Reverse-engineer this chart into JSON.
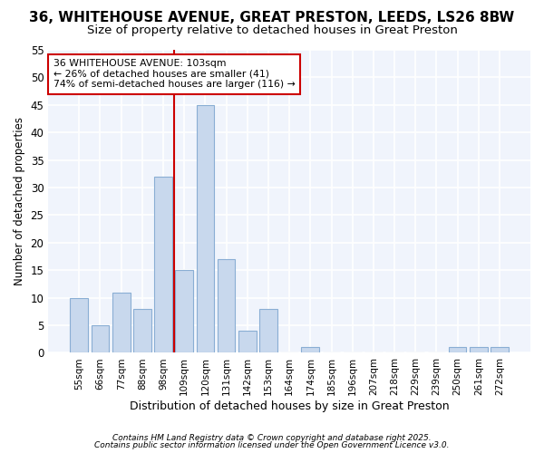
{
  "title1": "36, WHITEHOUSE AVENUE, GREAT PRESTON, LEEDS, LS26 8BW",
  "title2": "Size of property relative to detached houses in Great Preston",
  "xlabel": "Distribution of detached houses by size in Great Preston",
  "ylabel": "Number of detached properties",
  "bar_labels": [
    "55sqm",
    "66sqm",
    "77sqm",
    "88sqm",
    "98sqm",
    "109sqm",
    "120sqm",
    "131sqm",
    "142sqm",
    "153sqm",
    "164sqm",
    "174sqm",
    "185sqm",
    "196sqm",
    "207sqm",
    "218sqm",
    "229sqm",
    "239sqm",
    "250sqm",
    "261sqm",
    "272sqm"
  ],
  "bar_values": [
    10,
    5,
    11,
    8,
    32,
    15,
    45,
    17,
    4,
    8,
    0,
    1,
    0,
    0,
    0,
    0,
    0,
    0,
    1,
    1,
    1
  ],
  "bar_color": "#c8d8ed",
  "bar_edge_color": "#8aaed4",
  "ylim": [
    0,
    55
  ],
  "yticks": [
    0,
    5,
    10,
    15,
    20,
    25,
    30,
    35,
    40,
    45,
    50,
    55
  ],
  "red_line_x": 4.5,
  "annotation_line1": "36 WHITEHOUSE AVENUE: 103sqm",
  "annotation_line2": "← 26% of detached houses are smaller (41)",
  "annotation_line3": "74% of semi-detached houses are larger (116) →",
  "annotation_box_color": "#ffffff",
  "annotation_edge_color": "#cc0000",
  "footer1": "Contains HM Land Registry data © Crown copyright and database right 2025.",
  "footer2": "Contains public sector information licensed under the Open Government Licence v3.0.",
  "bg_color": "#ffffff",
  "plot_bg_color": "#f0f4fc",
  "grid_color": "#ffffff",
  "title_fontsize": 11,
  "subtitle_fontsize": 9.5,
  "bar_width": 0.85
}
